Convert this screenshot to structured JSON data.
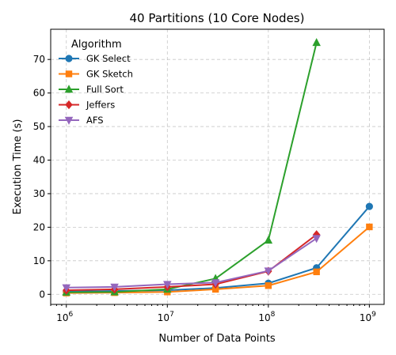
{
  "chart_data": {
    "type": "line",
    "title": "40 Partitions (10 Core Nodes)",
    "xlabel": "Number of Data Points",
    "ylabel": "Execution Time (s)",
    "xscale": "log",
    "xlim": [
      700000,
      1400000000
    ],
    "ylim": [
      -3,
      79
    ],
    "x_ticks": [
      {
        "value": 1000000,
        "base": "10",
        "exp": "6"
      },
      {
        "value": 10000000,
        "base": "10",
        "exp": "7"
      },
      {
        "value": 100000000,
        "base": "10",
        "exp": "8"
      },
      {
        "value": 1000000000,
        "base": "10",
        "exp": "9"
      }
    ],
    "y_ticks": [
      0,
      10,
      20,
      30,
      40,
      50,
      60,
      70
    ],
    "grid": true,
    "legend": {
      "title": "Algorithm",
      "placement": "top-left"
    },
    "series": [
      {
        "name": "GK Select",
        "color": "#1f77b4",
        "marker": "circle",
        "x": [
          1000000,
          3000000,
          10000000,
          30000000,
          100000000,
          300000000,
          1000000000
        ],
        "y": [
          0.8,
          1.0,
          1.2,
          1.9,
          3.3,
          7.9,
          26.2
        ]
      },
      {
        "name": "GK Sketch",
        "color": "#ff7f0e",
        "marker": "square",
        "x": [
          1000000,
          3000000,
          10000000,
          30000000,
          100000000,
          300000000,
          1000000000
        ],
        "y": [
          0.4,
          0.5,
          0.7,
          1.5,
          2.6,
          6.7,
          20.1
        ]
      },
      {
        "name": "Full Sort",
        "color": "#2ca02c",
        "marker": "triangle-up",
        "x": [
          1000000,
          3000000,
          10000000,
          30000000,
          100000000,
          300000000
        ],
        "y": [
          0.6,
          0.7,
          1.5,
          4.7,
          16.1,
          75.0
        ]
      },
      {
        "name": "Jeffers",
        "color": "#d62728",
        "marker": "diamond",
        "x": [
          1000000,
          3000000,
          10000000,
          30000000,
          100000000,
          300000000
        ],
        "y": [
          1.2,
          1.5,
          2.2,
          3.0,
          6.9,
          17.8
        ]
      },
      {
        "name": "AFS",
        "color": "#9467bd",
        "marker": "triangle-down",
        "x": [
          1000000,
          3000000,
          10000000,
          30000000,
          100000000,
          300000000
        ],
        "y": [
          2.0,
          2.2,
          3.0,
          3.5,
          7.0,
          16.7
        ]
      }
    ]
  }
}
